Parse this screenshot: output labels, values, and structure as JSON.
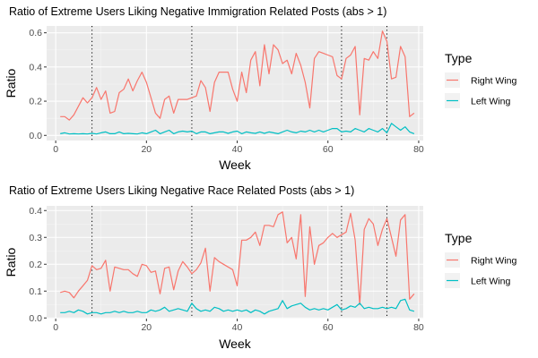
{
  "chart_data": [
    {
      "type": "line",
      "title": "Ratio of Extreme Users Liking Negative Immigration Related Posts (abs > 1)",
      "xlabel": "Week",
      "ylabel": "Ratio",
      "xlim": [
        -2,
        81
      ],
      "ylim": [
        -0.03,
        0.64
      ],
      "x_ticks": [
        0,
        20,
        40,
        60,
        80
      ],
      "y_ticks": [
        0.0,
        0.2,
        0.4,
        0.6
      ],
      "y_tick_labels": [
        "0.0",
        "0.2",
        "0.4",
        "0.6"
      ],
      "vlines": [
        8,
        30,
        63,
        73
      ],
      "legend_title": "Type",
      "legend_position": "right",
      "grid": true,
      "series": [
        {
          "name": "Right Wing",
          "color": "#F8766D",
          "x": [
            1,
            2,
            3,
            4,
            5,
            6,
            7,
            8,
            9,
            10,
            11,
            12,
            13,
            14,
            15,
            16,
            17,
            18,
            19,
            20,
            21,
            22,
            23,
            24,
            25,
            26,
            27,
            28,
            29,
            30,
            31,
            32,
            33,
            34,
            35,
            36,
            37,
            38,
            39,
            40,
            41,
            42,
            43,
            44,
            45,
            46,
            47,
            48,
            49,
            50,
            51,
            52,
            53,
            54,
            55,
            56,
            57,
            58,
            59,
            60,
            61,
            62,
            63,
            64,
            65,
            66,
            67,
            68,
            69,
            70,
            71,
            72,
            73,
            74,
            75,
            76,
            77,
            78,
            79
          ],
          "y": [
            0.11,
            0.11,
            0.09,
            0.12,
            0.17,
            0.22,
            0.19,
            0.22,
            0.28,
            0.21,
            0.26,
            0.13,
            0.14,
            0.25,
            0.27,
            0.33,
            0.26,
            0.32,
            0.37,
            0.31,
            0.22,
            0.13,
            0.1,
            0.21,
            0.23,
            0.13,
            0.21,
            0.21,
            0.21,
            0.22,
            0.23,
            0.32,
            0.28,
            0.14,
            0.31,
            0.37,
            0.37,
            0.37,
            0.27,
            0.2,
            0.37,
            0.25,
            0.44,
            0.49,
            0.29,
            0.53,
            0.36,
            0.53,
            0.5,
            0.42,
            0.44,
            0.36,
            0.48,
            0.41,
            0.31,
            0.16,
            0.45,
            0.49,
            0.48,
            0.47,
            0.46,
            0.35,
            0.33,
            0.45,
            0.47,
            0.52,
            0.12,
            0.45,
            0.44,
            0.49,
            0.45,
            0.61,
            0.55,
            0.33,
            0.34,
            0.52,
            0.46,
            0.11,
            0.13
          ]
        },
        {
          "name": "Left Wing",
          "color": "#00BFC4",
          "x": [
            1,
            2,
            3,
            4,
            5,
            6,
            7,
            8,
            9,
            10,
            11,
            12,
            13,
            14,
            15,
            16,
            17,
            18,
            19,
            20,
            21,
            22,
            23,
            24,
            25,
            26,
            27,
            28,
            29,
            30,
            31,
            32,
            33,
            34,
            35,
            36,
            37,
            38,
            39,
            40,
            41,
            42,
            43,
            44,
            45,
            46,
            47,
            48,
            49,
            50,
            51,
            52,
            53,
            54,
            55,
            56,
            57,
            58,
            59,
            60,
            61,
            62,
            63,
            64,
            65,
            66,
            67,
            68,
            69,
            70,
            71,
            72,
            73,
            74,
            75,
            76,
            77,
            78,
            79
          ],
          "y": [
            0.01,
            0.015,
            0.008,
            0.01,
            0.008,
            0.01,
            0.008,
            0.012,
            0.008,
            0.015,
            0.02,
            0.01,
            0.01,
            0.02,
            0.01,
            0.012,
            0.01,
            0.008,
            0.015,
            0.01,
            0.02,
            0.03,
            0.01,
            0.02,
            0.03,
            0.01,
            0.02,
            0.025,
            0.02,
            0.025,
            0.01,
            0.02,
            0.02,
            0.01,
            0.015,
            0.02,
            0.02,
            0.012,
            0.02,
            0.025,
            0.01,
            0.02,
            0.015,
            0.012,
            0.02,
            0.012,
            0.02,
            0.015,
            0.01,
            0.02,
            0.03,
            0.02,
            0.015,
            0.025,
            0.02,
            0.03,
            0.02,
            0.03,
            0.02,
            0.03,
            0.04,
            0.04,
            0.02,
            0.025,
            0.02,
            0.04,
            0.03,
            0.02,
            0.04,
            0.03,
            0.02,
            0.04,
            0.015,
            0.07,
            0.05,
            0.03,
            0.05,
            0.02,
            0.01
          ]
        }
      ]
    },
    {
      "type": "line",
      "title": "Ratio of Extreme Users Liking Negative Race Related Posts (abs > 1)",
      "xlabel": "Week",
      "ylabel": "Ratio",
      "xlim": [
        -2,
        81
      ],
      "ylim": [
        -0.0025,
        0.4175
      ],
      "x_ticks": [
        0,
        20,
        40,
        60,
        80
      ],
      "y_ticks": [
        0.0,
        0.1,
        0.2,
        0.3,
        0.4
      ],
      "y_tick_labels": [
        "0.0",
        "0.1",
        "0.2",
        "0.3",
        "0.4"
      ],
      "vlines": [
        8,
        30,
        63,
        73
      ],
      "legend_title": "Type",
      "legend_position": "right",
      "grid": true,
      "series": [
        {
          "name": "Right Wing",
          "color": "#F8766D",
          "x": [
            1,
            2,
            3,
            4,
            5,
            6,
            7,
            8,
            9,
            10,
            11,
            12,
            13,
            14,
            15,
            16,
            17,
            18,
            19,
            20,
            21,
            22,
            23,
            24,
            25,
            26,
            27,
            28,
            29,
            30,
            31,
            32,
            33,
            34,
            35,
            36,
            37,
            38,
            39,
            40,
            41,
            42,
            43,
            44,
            45,
            46,
            47,
            48,
            49,
            50,
            51,
            52,
            53,
            54,
            55,
            56,
            57,
            58,
            59,
            60,
            61,
            62,
            63,
            64,
            65,
            66,
            67,
            68,
            69,
            70,
            71,
            72,
            73,
            74,
            75,
            76,
            77,
            78,
            79
          ],
          "y": [
            0.095,
            0.1,
            0.095,
            0.075,
            0.1,
            0.12,
            0.14,
            0.195,
            0.18,
            0.185,
            0.215,
            0.1,
            0.19,
            0.185,
            0.18,
            0.18,
            0.165,
            0.155,
            0.2,
            0.195,
            0.17,
            0.175,
            0.09,
            0.185,
            0.19,
            0.105,
            0.175,
            0.21,
            0.19,
            0.165,
            0.18,
            0.205,
            0.26,
            0.1,
            0.225,
            0.21,
            0.2,
            0.19,
            0.18,
            0.12,
            0.29,
            0.29,
            0.3,
            0.32,
            0.27,
            0.345,
            0.345,
            0.34,
            0.385,
            0.395,
            0.28,
            0.3,
            0.22,
            0.385,
            0.08,
            0.34,
            0.2,
            0.27,
            0.28,
            0.3,
            0.315,
            0.3,
            0.31,
            0.32,
            0.39,
            0.29,
            0.05,
            0.33,
            0.37,
            0.35,
            0.27,
            0.33,
            0.37,
            0.3,
            0.23,
            0.365,
            0.385,
            0.07,
            0.09
          ]
        },
        {
          "name": "Left Wing",
          "color": "#00BFC4",
          "x": [
            1,
            2,
            3,
            4,
            5,
            6,
            7,
            8,
            9,
            10,
            11,
            12,
            13,
            14,
            15,
            16,
            17,
            18,
            19,
            20,
            21,
            22,
            23,
            24,
            25,
            26,
            27,
            28,
            29,
            30,
            31,
            32,
            33,
            34,
            35,
            36,
            37,
            38,
            39,
            40,
            41,
            42,
            43,
            44,
            45,
            46,
            47,
            48,
            49,
            50,
            51,
            52,
            53,
            54,
            55,
            56,
            57,
            58,
            59,
            60,
            61,
            62,
            63,
            64,
            65,
            66,
            67,
            68,
            69,
            70,
            71,
            72,
            73,
            74,
            75,
            76,
            77,
            78,
            79
          ],
          "y": [
            0.02,
            0.02,
            0.025,
            0.02,
            0.03,
            0.025,
            0.015,
            0.02,
            0.02,
            0.015,
            0.02,
            0.02,
            0.025,
            0.02,
            0.025,
            0.02,
            0.02,
            0.025,
            0.02,
            0.02,
            0.03,
            0.025,
            0.03,
            0.04,
            0.025,
            0.03,
            0.035,
            0.03,
            0.025,
            0.055,
            0.035,
            0.025,
            0.03,
            0.025,
            0.04,
            0.035,
            0.025,
            0.03,
            0.025,
            0.03,
            0.025,
            0.03,
            0.02,
            0.03,
            0.025,
            0.015,
            0.025,
            0.03,
            0.035,
            0.065,
            0.035,
            0.045,
            0.05,
            0.055,
            0.04,
            0.03,
            0.035,
            0.03,
            0.035,
            0.03,
            0.04,
            0.05,
            0.03,
            0.035,
            0.045,
            0.04,
            0.055,
            0.035,
            0.04,
            0.035,
            0.035,
            0.04,
            0.035,
            0.04,
            0.035,
            0.065,
            0.07,
            0.03,
            0.025
          ]
        }
      ]
    }
  ]
}
